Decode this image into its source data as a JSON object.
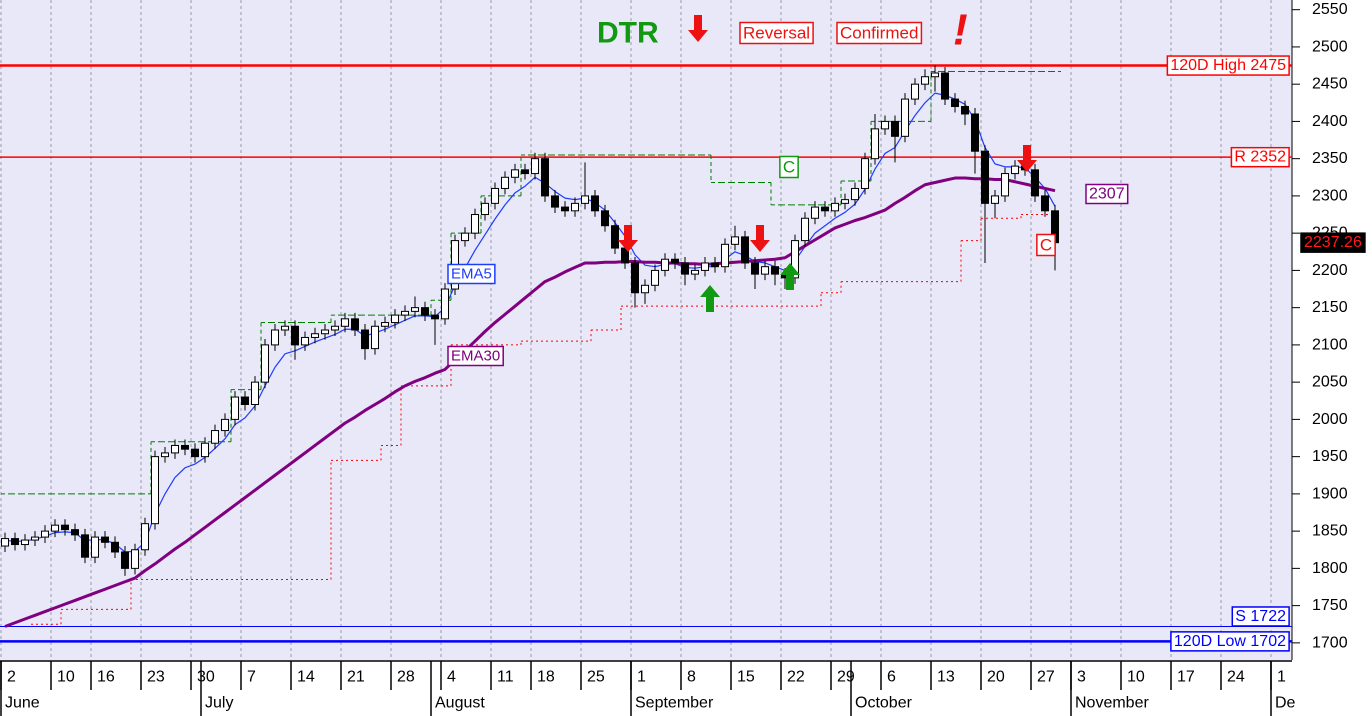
{
  "chart_data": {
    "type": "candlestick",
    "categories": [
      "2",
      null,
      null,
      null,
      null,
      "10",
      null,
      null,
      null,
      "16",
      null,
      null,
      null,
      null,
      "23",
      null,
      null,
      null,
      null,
      "30",
      null,
      null,
      null,
      null,
      "7",
      null,
      null,
      null,
      null,
      "14",
      null,
      null,
      null,
      null,
      "21",
      null,
      null,
      null,
      null,
      "28",
      null,
      null,
      null,
      null,
      "4",
      null,
      null,
      null,
      null,
      "11",
      null,
      null,
      null,
      "18",
      null,
      null,
      null,
      null,
      "25",
      null,
      null,
      null,
      null,
      "1",
      null,
      null,
      null,
      null,
      "8",
      null,
      null,
      null,
      null,
      "15",
      null,
      null,
      null,
      null,
      "22",
      null,
      null,
      null,
      null,
      "29",
      null,
      null,
      null,
      null,
      "6",
      null,
      null,
      null,
      null,
      "13",
      null,
      null,
      null,
      null,
      "20",
      null,
      null,
      null,
      null,
      "27",
      null,
      null,
      null,
      "3",
      null,
      null,
      null,
      null,
      "10",
      null,
      null,
      null,
      null,
      "17",
      null,
      null,
      null,
      null,
      "24",
      null,
      null,
      null,
      null,
      "1"
    ],
    "months": [
      "June",
      null,
      null,
      null,
      null,
      null,
      null,
      null,
      null,
      null,
      null,
      null,
      null,
      null,
      null,
      null,
      null,
      null,
      null,
      null,
      "July",
      null,
      null,
      null,
      null,
      null,
      null,
      null,
      null,
      null,
      null,
      null,
      null,
      null,
      null,
      null,
      null,
      null,
      null,
      null,
      null,
      null,
      null,
      "August",
      null,
      null,
      null,
      null,
      null,
      null,
      null,
      null,
      null,
      null,
      null,
      null,
      null,
      null,
      null,
      null,
      null,
      null,
      null,
      "September",
      null,
      null,
      null,
      null,
      null,
      null,
      null,
      null,
      null,
      null,
      null,
      null,
      null,
      null,
      null,
      null,
      null,
      null,
      null,
      null,
      null,
      "October",
      null,
      null,
      null,
      null,
      null,
      null,
      null,
      null,
      null,
      null,
      null,
      null,
      null,
      null,
      null,
      null,
      null,
      null,
      null,
      null,
      null,
      "November",
      null,
      null,
      null,
      null,
      null,
      null,
      null,
      null,
      null,
      null,
      null,
      null,
      null,
      null,
      null,
      null,
      null,
      null,
      null,
      "De"
    ],
    "open": [
      1830,
      1840,
      1832,
      1838,
      1842,
      1850,
      1858,
      1852,
      1845,
      1815,
      1842,
      1835,
      1822,
      1800,
      1825,
      1860,
      1950,
      1955,
      1965,
      1960,
      1950,
      1968,
      1985,
      2000,
      2030,
      2020,
      2050,
      2100,
      2120,
      2125,
      2100,
      2110,
      2115,
      2120,
      2125,
      2135,
      2120,
      2095,
      2125,
      2130,
      2140,
      2145,
      2150,
      2140,
      2135,
      2175,
      2240,
      2250,
      2275,
      2290,
      2310,
      2325,
      2335,
      2330,
      2350,
      2300,
      2285,
      2280,
      2290,
      2300,
      2280,
      2260,
      2230,
      2210,
      2170,
      2180,
      2200,
      2215,
      2210,
      2195,
      2200,
      2210,
      2205,
      2235,
      2245,
      2210,
      2195,
      2205,
      2195,
      2190,
      2240,
      2270,
      2285,
      2280,
      2290,
      2295,
      2310,
      2350,
      2390,
      2400,
      2380,
      2430,
      2450,
      2460,
      2465,
      2430,
      2420,
      2410,
      2360,
      2290,
      2300,
      2330,
      2340,
      2335,
      2300,
      2280,
      null,
      null,
      null,
      null,
      null,
      null,
      null,
      null,
      null,
      null,
      null,
      null,
      null,
      null,
      null,
      null,
      null,
      null,
      null,
      null,
      null,
      null
    ],
    "high": [
      1848,
      1848,
      1846,
      1850,
      1858,
      1866,
      1866,
      1860,
      1853,
      1850,
      1850,
      1843,
      1830,
      1833,
      1868,
      1958,
      1963,
      1973,
      1973,
      1968,
      1976,
      1993,
      2008,
      2038,
      2038,
      2058,
      2108,
      2128,
      2133,
      2133,
      2118,
      2123,
      2128,
      2133,
      2143,
      2143,
      2128,
      2133,
      2138,
      2148,
      2153,
      2165,
      2158,
      2148,
      2183,
      2248,
      2258,
      2283,
      2298,
      2318,
      2333,
      2343,
      2343,
      2358,
      2358,
      2308,
      2293,
      2298,
      2345,
      2308,
      2288,
      2268,
      2238,
      2218,
      2188,
      2208,
      2223,
      2223,
      2218,
      2208,
      2218,
      2218,
      2243,
      2260,
      2253,
      2218,
      2213,
      2213,
      2203,
      2248,
      2278,
      2293,
      2293,
      2298,
      2303,
      2318,
      2358,
      2410,
      2408,
      2408,
      2438,
      2458,
      2470,
      2475,
      2473,
      2438,
      2428,
      2418,
      2368,
      2308,
      2338,
      2348,
      2365,
      2343,
      2308,
      2288,
      null,
      null,
      null,
      null,
      null,
      null,
      null,
      null,
      null,
      null,
      null,
      null,
      null,
      null,
      null,
      null,
      null,
      null,
      null,
      null,
      null,
      null
    ],
    "low": [
      1822,
      1824,
      1824,
      1830,
      1834,
      1842,
      1844,
      1837,
      1807,
      1807,
      1827,
      1814,
      1790,
      1792,
      1817,
      1852,
      1942,
      1947,
      1952,
      1942,
      1942,
      1960,
      1977,
      1992,
      2012,
      2012,
      2042,
      2092,
      2112,
      2080,
      2092,
      2102,
      2107,
      2112,
      2117,
      2112,
      2080,
      2087,
      2117,
      2122,
      2132,
      2137,
      2132,
      2100,
      2127,
      2167,
      2232,
      2242,
      2267,
      2282,
      2302,
      2317,
      2322,
      2322,
      2292,
      2277,
      2272,
      2272,
      2282,
      2272,
      2252,
      2222,
      2202,
      2150,
      2155,
      2172,
      2192,
      2202,
      2180,
      2187,
      2192,
      2197,
      2197,
      2227,
      2202,
      2175,
      2187,
      2180,
      2175,
      2182,
      2232,
      2262,
      2272,
      2272,
      2282,
      2287,
      2302,
      2342,
      2382,
      2345,
      2372,
      2422,
      2442,
      2440,
      2422,
      2412,
      2395,
      2330,
      2210,
      2270,
      2292,
      2322,
      2327,
      2292,
      2272,
      2200,
      null,
      null,
      null,
      null,
      null,
      null,
      null,
      null,
      null,
      null,
      null,
      null,
      null,
      null,
      null,
      null,
      null,
      null,
      null,
      null,
      null,
      null
    ],
    "close": [
      1840,
      1832,
      1838,
      1842,
      1850,
      1858,
      1852,
      1845,
      1815,
      1842,
      1835,
      1822,
      1800,
      1825,
      1860,
      1950,
      1955,
      1965,
      1960,
      1950,
      1968,
      1985,
      2000,
      2030,
      2020,
      2050,
      2100,
      2120,
      2125,
      2100,
      2110,
      2115,
      2120,
      2125,
      2135,
      2120,
      2095,
      2125,
      2130,
      2140,
      2145,
      2150,
      2140,
      2135,
      2175,
      2240,
      2250,
      2275,
      2290,
      2310,
      2325,
      2335,
      2330,
      2350,
      2300,
      2285,
      2280,
      2290,
      2300,
      2280,
      2260,
      2230,
      2210,
      2170,
      2180,
      2200,
      2215,
      2210,
      2195,
      2200,
      2210,
      2205,
      2235,
      2245,
      2210,
      2195,
      2205,
      2195,
      2190,
      2240,
      2270,
      2285,
      2280,
      2290,
      2295,
      2310,
      2350,
      2390,
      2400,
      2380,
      2430,
      2450,
      2460,
      2465,
      2430,
      2420,
      2410,
      2360,
      2290,
      2300,
      2330,
      2340,
      2335,
      2300,
      2280,
      2237.26,
      null,
      null,
      null,
      null,
      null,
      null,
      null,
      null,
      null,
      null,
      null,
      null,
      null,
      null,
      null,
      null,
      null,
      null,
      null,
      null,
      null,
      null
    ],
    "up_color": "#ffffff",
    "down_color": "#000000",
    "series": [
      {
        "name": "EMA5",
        "color": "#1e3cff",
        "values": [
          1838,
          1836,
          1837,
          1839,
          1843,
          1848,
          1849,
          1848,
          1837,
          1839,
          1838,
          1833,
          1822,
          1823,
          1835,
          1873,
          1900,
          1922,
          1935,
          1940,
          1949,
          1961,
          1974,
          1993,
          2002,
          2018,
          2045,
          2070,
          2088,
          2092,
          2098,
          2104,
          2109,
          2114,
          2121,
          2121,
          2112,
          2116,
          2121,
          2127,
          2133,
          2139,
          2139,
          2138,
          2150,
          2180,
          2203,
          2227,
          2248,
          2269,
          2288,
          2304,
          2313,
          2325,
          2317,
          2306,
          2297,
          2295,
          2297,
          2291,
          2281,
          2264,
          2246,
          2221,
          2207,
          2205,
          2208,
          2209,
          2204,
          2203,
          2205,
          2205,
          2215,
          2225,
          2220,
          2212,
          2210,
          2205,
          2200,
          2213,
          2232,
          2250,
          2260,
          2270,
          2278,
          2289,
          2309,
          2336,
          2357,
          2365,
          2387,
          2408,
          2425,
          2438,
          2435,
          2430,
          2423,
          2402,
          2365,
          2343,
          2339,
          2339,
          2338,
          2325,
          2310,
          2286,
          null,
          null,
          null,
          null,
          null,
          null,
          null,
          null,
          null,
          null,
          null,
          null,
          null,
          null,
          null,
          null,
          null,
          null,
          null,
          null,
          null,
          null
        ]
      },
      {
        "name": "EMA30",
        "color": "#800080",
        "values": [
          1722,
          1727,
          1732,
          1737,
          1742,
          1747,
          1752,
          1757,
          1762,
          1767,
          1772,
          1777,
          1782,
          1787,
          1797,
          1806,
          1816,
          1826,
          1835,
          1845,
          1855,
          1865,
          1875,
          1885,
          1895,
          1905,
          1915,
          1925,
          1935,
          1945,
          1955,
          1965,
          1975,
          1985,
          1995,
          2003,
          2012,
          2020,
          2028,
          2037,
          2045,
          2051,
          2056,
          2062,
          2067,
          2080,
          2092,
          2105,
          2118,
          2130,
          2141,
          2152,
          2163,
          2174,
          2185,
          2191,
          2198,
          2204,
          2210,
          2210,
          2211,
          2211,
          2212,
          2212,
          2211,
          2211,
          2210,
          2210,
          2209,
          2209,
          2208,
          2209,
          2210,
          2211,
          2212,
          2213,
          2214,
          2215,
          2217,
          2225,
          2233,
          2241,
          2249,
          2257,
          2262,
          2267,
          2271,
          2276,
          2281,
          2290,
          2298,
          2307,
          2315,
          2318,
          2321,
          2324,
          2324,
          2323,
          2323,
          2322,
          2322,
          2319,
          2316,
          2313,
          2310,
          2307,
          null,
          null,
          null,
          null,
          null,
          null,
          null,
          null,
          null,
          null,
          null,
          null,
          null,
          null,
          null,
          null,
          null,
          null,
          null,
          null,
          null,
          null
        ]
      }
    ],
    "stops": [
      {
        "color": "#008000",
        "dash": "4,3",
        "values": [
          1900,
          1900,
          1900,
          1900,
          1900,
          1900,
          1900,
          1900,
          1900,
          1900,
          1900,
          1900,
          1900,
          1900,
          1900,
          1970,
          1970,
          1970,
          1970,
          1970,
          1970,
          1970,
          1970,
          2040,
          2040,
          2040,
          2130,
          2130,
          2130,
          2130,
          2130,
          2130,
          2130,
          2140,
          2140,
          2140,
          2140,
          2140,
          2140,
          2140,
          2140,
          2140,
          2140,
          2160,
          2160,
          2250,
          2250,
          2250,
          2300,
          2300,
          2300,
          2300,
          2355,
          2355,
          2355,
          2355,
          2355,
          2355,
          2355,
          2355,
          2355,
          2355,
          2355,
          2355,
          2355,
          2355,
          2355,
          2355,
          2355,
          2355,
          2355,
          2318,
          2318,
          2318,
          2318,
          2318,
          2318,
          2288,
          2288,
          2288,
          2288,
          2288,
          2288,
          2288,
          2320,
          2320,
          2320,
          2400,
          2400,
          2400,
          2400,
          2400,
          2400,
          2467,
          2467,
          2467,
          2467,
          2467,
          2467,
          2467,
          2467,
          2467,
          2467,
          2467,
          2467,
          2467,
          null,
          null,
          null,
          null,
          null,
          null,
          null,
          null,
          null,
          null,
          null,
          null,
          null,
          null,
          null,
          null,
          null,
          null,
          null,
          null,
          null,
          null
        ]
      },
      {
        "color": "#ff0000",
        "dash": "2,3",
        "values": [
          null,
          null,
          null,
          1725,
          1725,
          1725,
          1745,
          1745,
          1745,
          1745,
          1745,
          1745,
          1745,
          1785,
          1785,
          1785,
          1785,
          1785,
          1785,
          1785,
          1785,
          1785,
          1785,
          1785,
          1785,
          1785,
          1785,
          1785,
          1785,
          1785,
          1785,
          1785,
          1785,
          1945,
          1945,
          1945,
          1945,
          1945,
          1965,
          1965,
          2045,
          2045,
          2045,
          2045,
          2045,
          2100,
          2100,
          2100,
          2100,
          2100,
          2100,
          2100,
          2105,
          2105,
          2105,
          2105,
          2105,
          2105,
          2105,
          2120,
          2120,
          2120,
          2152,
          2152,
          2152,
          2152,
          2152,
          2152,
          2152,
          2152,
          2152,
          2152,
          2152,
          2152,
          2152,
          2152,
          2152,
          2152,
          2152,
          2152,
          2152,
          2152,
          2170,
          2170,
          2185,
          2185,
          2185,
          2185,
          2185,
          2185,
          2185,
          2185,
          2185,
          2185,
          2185,
          2185,
          2240,
          2240,
          2270,
          2270,
          2270,
          2270,
          2275,
          2275,
          2275,
          2275,
          null,
          null,
          null,
          null,
          null,
          null,
          null,
          null,
          null,
          null,
          null,
          null,
          null,
          null,
          null,
          null,
          null,
          null,
          null,
          null,
          null,
          null
        ]
      }
    ],
    "levels": [
      {
        "label": "120D High 2475",
        "value": 2475,
        "color": "#ff0000",
        "width": 2.5
      },
      {
        "label": "R 2352",
        "value": 2352,
        "color": "#ff0000",
        "width": 1.5
      },
      {
        "label": "S 1722",
        "value": 1722,
        "color": "#0000ff",
        "width": 1
      },
      {
        "label": "120D Low 1702",
        "value": 1702,
        "color": "#0000ff",
        "width": 2.5
      }
    ],
    "annotations": {
      "signal": "DTR",
      "reversal": "Reversal",
      "confirmed": "Confirmed",
      "alert": "!",
      "markers": [
        "C",
        "C"
      ]
    },
    "ylim": [
      1677,
      2563
    ],
    "yticks": [
      1700,
      1750,
      1800,
      1850,
      1900,
      1950,
      2000,
      2050,
      2100,
      2150,
      2200,
      2250,
      2300,
      2350,
      2400,
      2450,
      2500,
      2550
    ],
    "grid": "x"
  }
}
